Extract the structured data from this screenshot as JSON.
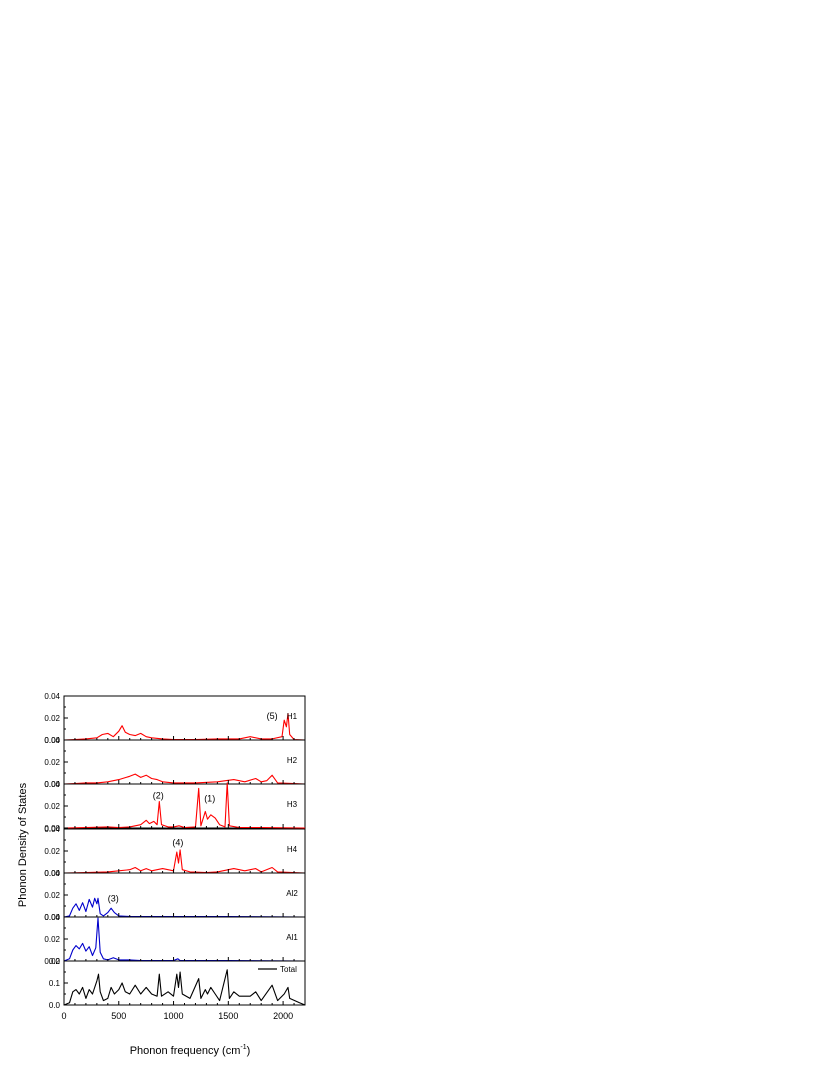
{
  "chart_data": {
    "type": "line",
    "ylabel": "Phonon Density of States",
    "xlabel_main": "Phonon frequency (cm",
    "xlabel_sup": "-1",
    "xlabel_close": ")",
    "xlim": [
      0,
      2200
    ],
    "x_ticks": [
      0,
      500,
      1000,
      1500,
      2000
    ],
    "x_tick_labels": [
      "0",
      "500",
      "1000",
      "1500",
      "2000"
    ],
    "colors": {
      "H": "#ff0000",
      "Al": "#0000cc",
      "Total": "#000000",
      "axes": "#000000"
    },
    "panels": [
      {
        "name": "H1",
        "color": "#ff0000",
        "ylim": [
          0,
          0.04
        ],
        "y_ticks": [
          0,
          0.02,
          0.04
        ],
        "y_tick_labels": [
          "0.00",
          "0.02",
          "0.04"
        ],
        "annotations": [
          {
            "text": "(5)",
            "x": 1900,
            "y": 0.019
          }
        ],
        "points": [
          [
            0,
            0
          ],
          [
            100,
            0.0005
          ],
          [
            200,
            0.001
          ],
          [
            300,
            0.002
          ],
          [
            350,
            0.005
          ],
          [
            400,
            0.006
          ],
          [
            450,
            0.003
          ],
          [
            500,
            0.008
          ],
          [
            530,
            0.013
          ],
          [
            560,
            0.007
          ],
          [
            600,
            0.005
          ],
          [
            650,
            0.004
          ],
          [
            700,
            0.006
          ],
          [
            750,
            0.003
          ],
          [
            800,
            0.002
          ],
          [
            900,
            0.001
          ],
          [
            1000,
            0.0005
          ],
          [
            1200,
            0.0005
          ],
          [
            1400,
            0.001
          ],
          [
            1600,
            0.001
          ],
          [
            1700,
            0.003
          ],
          [
            1800,
            0.001
          ],
          [
            1900,
            0.001
          ],
          [
            1990,
            0.003
          ],
          [
            2010,
            0.018
          ],
          [
            2030,
            0.012
          ],
          [
            2045,
            0.024
          ],
          [
            2060,
            0.005
          ],
          [
            2100,
            0.0005
          ],
          [
            2200,
            0
          ]
        ]
      },
      {
        "name": "H2",
        "color": "#ff0000",
        "ylim": [
          0,
          0.04
        ],
        "y_ticks": [
          0,
          0.02,
          0.04
        ],
        "y_tick_labels": [
          "0.00",
          "0.02",
          "0.04"
        ],
        "annotations": [],
        "points": [
          [
            0,
            0
          ],
          [
            100,
            0.0005
          ],
          [
            200,
            0.001
          ],
          [
            300,
            0.001
          ],
          [
            400,
            0.002
          ],
          [
            500,
            0.004
          ],
          [
            600,
            0.007
          ],
          [
            650,
            0.009
          ],
          [
            700,
            0.006
          ],
          [
            750,
            0.008
          ],
          [
            800,
            0.005
          ],
          [
            850,
            0.004
          ],
          [
            900,
            0.002
          ],
          [
            1000,
            0.001
          ],
          [
            1200,
            0.001
          ],
          [
            1400,
            0.002
          ],
          [
            1550,
            0.004
          ],
          [
            1650,
            0.002
          ],
          [
            1750,
            0.005
          ],
          [
            1800,
            0.002
          ],
          [
            1850,
            0.003
          ],
          [
            1900,
            0.008
          ],
          [
            1950,
            0.001
          ],
          [
            2100,
            0.0005
          ],
          [
            2200,
            0
          ]
        ]
      },
      {
        "name": "H3",
        "color": "#ff0000",
        "ylim": [
          0,
          0.04
        ],
        "y_ticks": [
          0,
          0.02,
          0.04
        ],
        "y_tick_labels": [
          "0.00",
          "0.02",
          "0.04"
        ],
        "annotations": [
          {
            "text": "(2)",
            "x": 860,
            "y": 0.027
          },
          {
            "text": "(1)",
            "x": 1330,
            "y": 0.024
          }
        ],
        "points": [
          [
            0,
            0
          ],
          [
            200,
            0.0005
          ],
          [
            400,
            0.001
          ],
          [
            500,
            0.0005
          ],
          [
            600,
            0.001
          ],
          [
            700,
            0.003
          ],
          [
            750,
            0.007
          ],
          [
            780,
            0.004
          ],
          [
            820,
            0.006
          ],
          [
            850,
            0.003
          ],
          [
            870,
            0.024
          ],
          [
            890,
            0.003
          ],
          [
            950,
            0.001
          ],
          [
            1000,
            0.001
          ],
          [
            1050,
            0.002
          ],
          [
            1100,
            0.0005
          ],
          [
            1200,
            0.001
          ],
          [
            1230,
            0.036
          ],
          [
            1250,
            0.002
          ],
          [
            1290,
            0.015
          ],
          [
            1310,
            0.008
          ],
          [
            1340,
            0.012
          ],
          [
            1380,
            0.009
          ],
          [
            1420,
            0.003
          ],
          [
            1470,
            0.001
          ],
          [
            1490,
            0.041
          ],
          [
            1510,
            0.002
          ],
          [
            1600,
            0.0005
          ],
          [
            1800,
            0.0005
          ],
          [
            2200,
            0
          ]
        ]
      },
      {
        "name": "H4",
        "color": "#ff0000",
        "ylim": [
          0,
          0.04
        ],
        "y_ticks": [
          0,
          0.02,
          0.04
        ],
        "y_tick_labels": [
          "0.00",
          "0.02",
          "0.04"
        ],
        "annotations": [
          {
            "text": "(4)",
            "x": 1040,
            "y": 0.025
          }
        ],
        "points": [
          [
            0,
            0
          ],
          [
            200,
            0.0005
          ],
          [
            400,
            0.001
          ],
          [
            500,
            0.002
          ],
          [
            600,
            0.003
          ],
          [
            650,
            0.005
          ],
          [
            700,
            0.002
          ],
          [
            750,
            0.004
          ],
          [
            800,
            0.002
          ],
          [
            850,
            0.003
          ],
          [
            900,
            0.004
          ],
          [
            950,
            0.003
          ],
          [
            1000,
            0.002
          ],
          [
            1030,
            0.019
          ],
          [
            1045,
            0.009
          ],
          [
            1060,
            0.021
          ],
          [
            1080,
            0.003
          ],
          [
            1150,
            0.001
          ],
          [
            1300,
            0.0005
          ],
          [
            1400,
            0.001
          ],
          [
            1550,
            0.004
          ],
          [
            1650,
            0.002
          ],
          [
            1700,
            0.003
          ],
          [
            1750,
            0.004
          ],
          [
            1800,
            0.001
          ],
          [
            1900,
            0.005
          ],
          [
            1950,
            0.001
          ],
          [
            2200,
            0
          ]
        ]
      },
      {
        "name": "Al2",
        "color": "#0000cc",
        "ylim": [
          0,
          0.04
        ],
        "y_ticks": [
          0,
          0.02,
          0.04
        ],
        "y_tick_labels": [
          "0.00",
          "0.02",
          "0.04"
        ],
        "annotations": [
          {
            "text": "(3)",
            "x": 450,
            "y": 0.014
          }
        ],
        "points": [
          [
            0,
            0
          ],
          [
            50,
            0.001
          ],
          [
            80,
            0.008
          ],
          [
            110,
            0.012
          ],
          [
            140,
            0.006
          ],
          [
            170,
            0.013
          ],
          [
            200,
            0.005
          ],
          [
            230,
            0.016
          ],
          [
            260,
            0.009
          ],
          [
            280,
            0.017
          ],
          [
            300,
            0.012
          ],
          [
            310,
            0.017
          ],
          [
            330,
            0.003
          ],
          [
            360,
            0.001
          ],
          [
            400,
            0.004
          ],
          [
            430,
            0.008
          ],
          [
            460,
            0.004
          ],
          [
            500,
            0.001
          ],
          [
            600,
            0.0005
          ],
          [
            1000,
            0.0005
          ],
          [
            1500,
            0.0005
          ],
          [
            2200,
            0
          ]
        ]
      },
      {
        "name": "Al1",
        "color": "#0000cc",
        "ylim": [
          0,
          0.04
        ],
        "y_ticks": [
          0,
          0.02,
          0.04
        ],
        "y_tick_labels": [
          "0.00",
          "0.02",
          "0.04"
        ],
        "annotations": [],
        "points": [
          [
            0,
            0
          ],
          [
            50,
            0.002
          ],
          [
            80,
            0.01
          ],
          [
            110,
            0.014
          ],
          [
            140,
            0.011
          ],
          [
            170,
            0.016
          ],
          [
            200,
            0.009
          ],
          [
            230,
            0.013
          ],
          [
            260,
            0.005
          ],
          [
            290,
            0.012
          ],
          [
            310,
            0.039
          ],
          [
            330,
            0.008
          ],
          [
            360,
            0.002
          ],
          [
            400,
            0.001
          ],
          [
            450,
            0.003
          ],
          [
            500,
            0.001
          ],
          [
            600,
            0.001
          ],
          [
            700,
            0.0005
          ],
          [
            1000,
            0.0005
          ],
          [
            1040,
            0.002
          ],
          [
            1060,
            0.0005
          ],
          [
            1500,
            0.0005
          ],
          [
            2200,
            0
          ]
        ]
      },
      {
        "name": "Total",
        "color": "#000000",
        "legend": "Total",
        "ylim": [
          0,
          0.2
        ],
        "y_ticks": [
          0,
          0.1,
          0.2
        ],
        "y_tick_labels": [
          "0.0",
          "0.1",
          "0.2"
        ],
        "annotations": [],
        "points": [
          [
            0,
            0
          ],
          [
            50,
            0.01
          ],
          [
            80,
            0.06
          ],
          [
            110,
            0.07
          ],
          [
            140,
            0.05
          ],
          [
            170,
            0.08
          ],
          [
            200,
            0.03
          ],
          [
            230,
            0.07
          ],
          [
            260,
            0.05
          ],
          [
            300,
            0.11
          ],
          [
            315,
            0.14
          ],
          [
            330,
            0.06
          ],
          [
            360,
            0.02
          ],
          [
            400,
            0.03
          ],
          [
            430,
            0.08
          ],
          [
            460,
            0.05
          ],
          [
            500,
            0.07
          ],
          [
            530,
            0.1
          ],
          [
            560,
            0.06
          ],
          [
            600,
            0.05
          ],
          [
            650,
            0.09
          ],
          [
            700,
            0.05
          ],
          [
            750,
            0.08
          ],
          [
            800,
            0.05
          ],
          [
            850,
            0.04
          ],
          [
            870,
            0.14
          ],
          [
            890,
            0.04
          ],
          [
            950,
            0.06
          ],
          [
            1000,
            0.04
          ],
          [
            1030,
            0.14
          ],
          [
            1045,
            0.08
          ],
          [
            1060,
            0.15
          ],
          [
            1080,
            0.05
          ],
          [
            1150,
            0.03
          ],
          [
            1230,
            0.12
          ],
          [
            1250,
            0.03
          ],
          [
            1290,
            0.07
          ],
          [
            1310,
            0.05
          ],
          [
            1340,
            0.08
          ],
          [
            1380,
            0.05
          ],
          [
            1420,
            0.02
          ],
          [
            1490,
            0.16
          ],
          [
            1510,
            0.03
          ],
          [
            1550,
            0.06
          ],
          [
            1600,
            0.04
          ],
          [
            1700,
            0.04
          ],
          [
            1750,
            0.06
          ],
          [
            1800,
            0.02
          ],
          [
            1900,
            0.09
          ],
          [
            1950,
            0.02
          ],
          [
            2010,
            0.05
          ],
          [
            2045,
            0.08
          ],
          [
            2060,
            0.03
          ],
          [
            2150,
            0.01
          ],
          [
            2200,
            0
          ]
        ]
      }
    ]
  }
}
